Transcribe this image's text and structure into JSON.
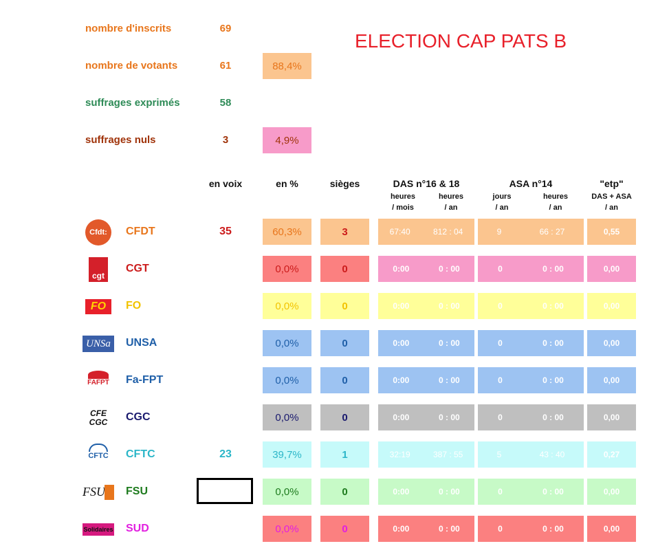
{
  "title": "ELECTION CAP PATS B",
  "summary": {
    "inscrits": {
      "label": "nombre d'inscrits",
      "value": "69"
    },
    "votants": {
      "label": "nombre de votants",
      "value": "61",
      "pct": "88,4%"
    },
    "exprimes": {
      "label": "suffrages exprimés",
      "value": "58"
    },
    "nuls": {
      "label": "suffrages nuls",
      "value": "3",
      "pct": "4,9%"
    }
  },
  "headers": {
    "voix": "en voix",
    "pct": "en %",
    "sieges": "sièges",
    "das": "DAS n°16 & 18",
    "das_sub1a": "heures",
    "das_sub1b": "/ mois",
    "das_sub2a": "heures",
    "das_sub2b": "/ an",
    "asa": "ASA n°14",
    "asa_sub1a": "jours",
    "asa_sub1b": "/ an",
    "asa_sub2a": "heures",
    "asa_sub2b": "/ an",
    "etp": "\"etp\"",
    "etp_sub1": "DAS + ASA",
    "etp_sub2": "/ an"
  },
  "rows": [
    {
      "name": "CFDT",
      "logo": "Cfdt:",
      "voix": "35",
      "pct": "60,3%",
      "seats": "3",
      "das_m": "67:40",
      "das_a": "812 : 04",
      "asa_j": "9",
      "asa_h": "66 : 27",
      "etp": "0,55"
    },
    {
      "name": "CGT",
      "logo": "cgt",
      "voix": "",
      "pct": "0,0%",
      "seats": "0",
      "das_m": "0:00",
      "das_a": "0 : 00",
      "asa_j": "0",
      "asa_h": "0 : 00",
      "etp": "0,00"
    },
    {
      "name": "FO",
      "logo": "FO",
      "voix": "",
      "pct": "0,0%",
      "seats": "0",
      "das_m": "0:00",
      "das_a": "0 : 00",
      "asa_j": "0",
      "asa_h": "0 : 00",
      "etp": "0,00"
    },
    {
      "name": "UNSA",
      "logo": "UNSa",
      "voix": "",
      "pct": "0,0%",
      "seats": "0",
      "das_m": "0:00",
      "das_a": "0 : 00",
      "asa_j": "0",
      "asa_h": "0 : 00",
      "etp": "0,00"
    },
    {
      "name": "Fa-FPT",
      "logo": "FAFPT",
      "voix": "",
      "pct": "0,0%",
      "seats": "0",
      "das_m": "0:00",
      "das_a": "0 : 00",
      "asa_j": "0",
      "asa_h": "0 : 00",
      "etp": "0,00"
    },
    {
      "name": "CGC",
      "logo": "CFE CGC",
      "voix": "",
      "pct": "0,0%",
      "seats": "0",
      "das_m": "0:00",
      "das_a": "0 : 00",
      "asa_j": "0",
      "asa_h": "0 : 00",
      "etp": "0,00"
    },
    {
      "name": "CFTC",
      "logo": "CFTC",
      "voix": "23",
      "pct": "39,7%",
      "seats": "1",
      "das_m": "32:19",
      "das_a": "387 : 55",
      "asa_j": "5",
      "asa_h": "43 : 40",
      "etp": "0,27"
    },
    {
      "name": "FSU",
      "logo": "FSU",
      "voix": "",
      "pct": "0,0%",
      "seats": "0",
      "das_m": "0:00",
      "das_a": "0 : 00",
      "asa_j": "0",
      "asa_h": "0 : 00",
      "etp": "0,00"
    },
    {
      "name": "SUD",
      "logo": "Solidaires",
      "voix": "",
      "pct": "0,0%",
      "seats": "0",
      "das_m": "0:00",
      "das_a": "0 : 00",
      "asa_j": "0",
      "asa_h": "0 : 00",
      "etp": "0,00"
    }
  ]
}
